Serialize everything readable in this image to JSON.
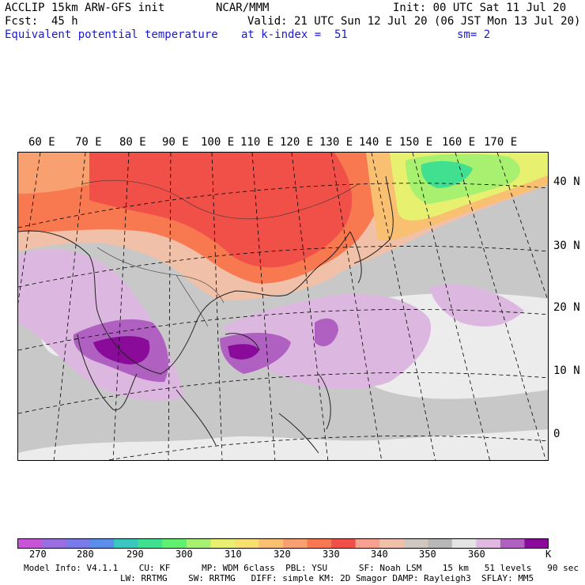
{
  "header": {
    "model": "ACCLIP 15km ARW-GFS init",
    "org": "NCAR/MMM",
    "init": "Init: 00 UTC Sat 11 Jul 20",
    "fcst_label": "Fcst:",
    "fcst_value": "45 h",
    "valid": "Valid: 21 UTC Sun 12 Jul 20 (06 JST Mon 13 Jul 20)",
    "field": "Equivalent potential temperature",
    "level": "at k-index =  51",
    "smoothing": "sm= 2"
  },
  "map": {
    "longitude_labels": [
      "60 E",
      "70 E",
      "80 E",
      "90 E",
      "100 E",
      "110 E",
      "120 E",
      "130 E",
      "140 E",
      "150 E",
      "160 E",
      "170 E"
    ],
    "latitude_labels": [
      "40 N",
      "30 N",
      "20 N",
      "10 N",
      "0"
    ]
  },
  "colorbar": {
    "unit": "K",
    "tick_labels": [
      "270",
      "280",
      "290",
      "300",
      "310",
      "320",
      "330",
      "340",
      "350",
      "360"
    ],
    "colors": [
      "#c855d8",
      "#9a6ee0",
      "#7a7ae8",
      "#5a8ee8",
      "#38c8c0",
      "#40e090",
      "#60f070",
      "#a8f070",
      "#e8f070",
      "#f8e070",
      "#f8c070",
      "#f8a070",
      "#f87850",
      "#f05048",
      "#f8a090",
      "#f0c0a8",
      "#d0c8c0",
      "#b8b8b8",
      "#e4e4e4",
      "#e0b8e0",
      "#b060c0",
      "#8a0a9a"
    ]
  },
  "footer": {
    "line1": "Model Info: V4.1.1    CU: KF      MP: WDM 6class  PBL: YSU      SF: Noah LSM    15 km   51 levels   90 sec",
    "line2": "LW: RRTMG    SW: RRTMG   DIFF: simple KM: 2D Smagor DAMP: Rayleigh3  SFLAY: MM5"
  }
}
